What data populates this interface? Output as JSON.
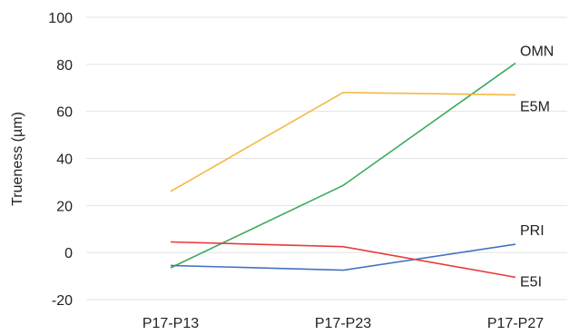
{
  "chart_data": {
    "type": "line",
    "categories": [
      "P17-P13",
      "P17-P23",
      "P17-P27"
    ],
    "ylabel": "Trueness (µm)",
    "ylim": [
      -20,
      100
    ],
    "yticks": [
      100,
      80,
      60,
      40,
      20,
      0,
      -20
    ],
    "grid": true,
    "series": [
      {
        "name": "OMN",
        "color": "#3aaa5c",
        "values": [
          -6.5,
          28.5,
          80.5
        ]
      },
      {
        "name": "E5M",
        "color": "#f4b942",
        "values": [
          26,
          68,
          67
        ]
      },
      {
        "name": "PRI",
        "color": "#4472c4",
        "values": [
          -5.5,
          -7.5,
          3.5
        ]
      },
      {
        "name": "E5I",
        "color": "#e83a3a",
        "values": [
          4.5,
          2.5,
          -10.5
        ]
      }
    ]
  }
}
